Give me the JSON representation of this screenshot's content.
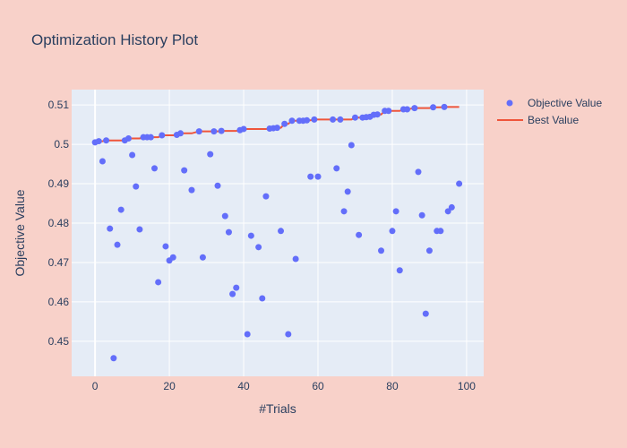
{
  "chart_data": {
    "type": "scatter",
    "title": "Optimization History Plot",
    "xlabel": "#Trials",
    "ylabel": "Objective Value",
    "xlim": [
      -6.3,
      104.6
    ],
    "ylim": [
      0.4411,
      0.5139
    ],
    "x_ticks": [
      0,
      20,
      40,
      60,
      80,
      100
    ],
    "y_ticks": [
      0.45,
      0.46,
      0.47,
      0.48,
      0.49,
      0.5,
      0.51
    ],
    "y_tick_labels": [
      "0.45",
      "0.46",
      "0.47",
      "0.48",
      "0.49",
      "0.5",
      "0.51"
    ],
    "grid": true,
    "legend_placement": "top-right outside",
    "series": [
      {
        "name": "Objective Value",
        "mode": "markers",
        "color": "#636efa",
        "x": [
          0,
          1,
          2,
          3,
          4,
          5,
          6,
          7,
          8,
          9,
          10,
          11,
          12,
          13,
          14,
          15,
          16,
          17,
          18,
          19,
          20,
          21,
          22,
          23,
          24,
          26,
          28,
          29,
          31,
          32,
          33,
          34,
          35,
          36,
          37,
          38,
          39,
          40,
          41,
          42,
          44,
          45,
          46,
          47,
          48,
          49,
          50,
          51,
          52,
          53,
          54,
          55,
          56,
          57,
          58,
          59,
          60,
          64,
          65,
          66,
          67,
          68,
          69,
          70,
          71,
          72,
          73,
          74,
          75,
          76,
          77,
          78,
          79,
          80,
          81,
          82,
          83,
          84,
          86,
          87,
          88,
          89,
          90,
          91,
          92,
          93,
          94,
          95,
          96,
          98
        ],
        "y": [
          0.5005,
          0.5008,
          0.4957,
          0.501,
          0.4786,
          0.4457,
          0.4745,
          0.4834,
          0.501,
          0.5015,
          0.4973,
          0.4893,
          0.4784,
          0.5018,
          0.5018,
          0.5018,
          0.4939,
          0.465,
          0.5023,
          0.4741,
          0.4705,
          0.4713,
          0.5024,
          0.5028,
          0.4934,
          0.4884,
          0.5033,
          0.4713,
          0.4975,
          0.5033,
          0.4895,
          0.5034,
          0.4818,
          0.4777,
          0.462,
          0.4636,
          0.5036,
          0.5039,
          0.4518,
          0.4768,
          0.4739,
          0.4609,
          0.4868,
          0.504,
          0.5041,
          0.5042,
          0.478,
          0.5052,
          0.4518,
          0.506,
          0.4709,
          0.506,
          0.506,
          0.5061,
          0.4918,
          0.5063,
          0.4918,
          0.5063,
          0.4939,
          0.5063,
          0.483,
          0.488,
          0.4998,
          0.5068,
          0.477,
          0.5068,
          0.5069,
          0.507,
          0.5075,
          0.5076,
          0.473,
          0.5085,
          0.5085,
          0.478,
          0.483,
          0.468,
          0.5089,
          0.5089,
          0.5092,
          0.493,
          0.482,
          0.457,
          0.473,
          0.5094,
          0.478,
          0.478,
          0.5095,
          0.483,
          0.484,
          0.49
        ]
      },
      {
        "name": "Best Value",
        "mode": "lines",
        "color": "#ef553b",
        "derived": "cumulative maximum of Objective Value"
      }
    ]
  },
  "colors": {
    "paper": "#f8d1c9",
    "plot_bg": "#e5ecf6",
    "grid": "#ffffff",
    "text": "#2a3f5f"
  }
}
